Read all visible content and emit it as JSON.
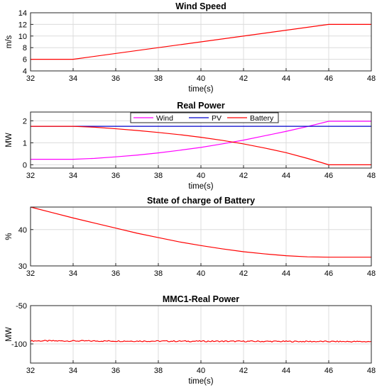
{
  "chart_data": [
    {
      "type": "line",
      "title": "Wind Speed",
      "xlabel": "time(s)",
      "ylabel": "m/s",
      "xlim": [
        32,
        48
      ],
      "ylim": [
        4,
        14
      ],
      "xticks": [
        "32",
        "34",
        "36",
        "38",
        "40",
        "42",
        "44",
        "46",
        "48"
      ],
      "yticks": [
        "4",
        "6",
        "8",
        "10",
        "12",
        "14"
      ],
      "grid": true,
      "series": [
        {
          "color": "#ff0000",
          "x": [
            32,
            34,
            46,
            48
          ],
          "y": [
            6,
            6,
            12,
            12
          ]
        }
      ]
    },
    {
      "type": "line",
      "title": "Real Power",
      "xlabel": "time(s)",
      "ylabel": "MW",
      "xlim": [
        32,
        48
      ],
      "ylim": [
        -0.15,
        2.4
      ],
      "xticks": [
        "32",
        "34",
        "36",
        "38",
        "40",
        "42",
        "44",
        "46",
        "48"
      ],
      "yticks": [
        "0",
        "1",
        "2"
      ],
      "grid": true,
      "legend": "top-center",
      "series": [
        {
          "name": "Wind",
          "color": "#ff00ff",
          "x": [
            32,
            34,
            35,
            36,
            37,
            38,
            39,
            40,
            41,
            42,
            43,
            44,
            45,
            46,
            47,
            48
          ],
          "y": [
            0.25,
            0.25,
            0.29,
            0.36,
            0.44,
            0.54,
            0.66,
            0.79,
            0.95,
            1.12,
            1.32,
            1.52,
            1.74,
            1.98,
            1.98,
            1.98
          ]
        },
        {
          "name": "PV",
          "color": "#0000cc",
          "x": [
            32,
            48
          ],
          "y": [
            1.75,
            1.75
          ]
        },
        {
          "name": "Battery",
          "color": "#ff0000",
          "x": [
            32,
            34,
            35,
            36,
            37,
            38,
            39,
            40,
            41,
            42,
            43,
            44,
            45,
            46,
            47,
            48
          ],
          "y": [
            1.75,
            1.75,
            1.71,
            1.64,
            1.56,
            1.47,
            1.37,
            1.25,
            1.11,
            0.95,
            0.76,
            0.55,
            0.29,
            0.0,
            0.0,
            0.0
          ]
        }
      ]
    },
    {
      "type": "line",
      "title": "State of charge of Battery",
      "xlabel": "",
      "ylabel": "%",
      "xlim": [
        32,
        48
      ],
      "ylim": [
        30,
        46.2
      ],
      "xticks": [
        "32",
        "34",
        "36",
        "38",
        "40",
        "42",
        "44",
        "46",
        "48"
      ],
      "yticks": [
        "30",
        "40"
      ],
      "grid": true,
      "series": [
        {
          "color": "#ff0000",
          "x": [
            32,
            33,
            34,
            35,
            36,
            37,
            38,
            39,
            40,
            41,
            42,
            43,
            44,
            45,
            46,
            47,
            48
          ],
          "y": [
            46.2,
            44.7,
            43.2,
            41.8,
            40.4,
            39.0,
            37.8,
            36.6,
            35.6,
            34.7,
            33.9,
            33.3,
            32.8,
            32.5,
            32.4,
            32.4,
            32.4
          ]
        }
      ]
    },
    {
      "type": "line",
      "title": "MMC1-Real Power",
      "xlabel": "time(s)",
      "ylabel": "MW",
      "xlim": [
        32,
        48
      ],
      "ylim": [
        -125,
        -50
      ],
      "xticks": [
        "32",
        "34",
        "36",
        "38",
        "40",
        "42",
        "44",
        "46",
        "48"
      ],
      "yticks": [
        "-50",
        "-100"
      ],
      "grid": true,
      "series": [
        {
          "color": "#ff0000",
          "x": [
            32,
            48
          ],
          "y": [
            -96,
            -97
          ],
          "noise": true
        }
      ]
    }
  ]
}
